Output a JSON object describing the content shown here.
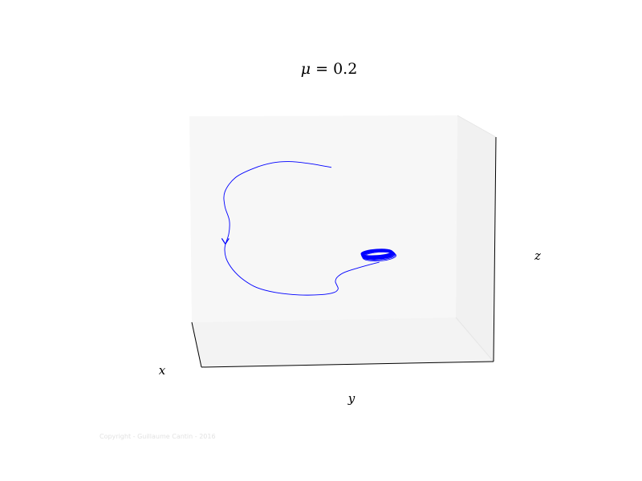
{
  "chart_data": {
    "type": "line",
    "projection": "3d",
    "title": {
      "var": "μ",
      "op": " = ",
      "value": "0.2"
    },
    "xlabel": "x",
    "ylabel": "y",
    "zlabel": "z",
    "grid": false,
    "ticks": false,
    "direction_marker": "arrowhead",
    "series": [
      {
        "color": "#0000ff",
        "points": [
          [
            0.53,
            0.75
          ],
          [
            0.44,
            0.77
          ],
          [
            0.37,
            0.778
          ],
          [
            0.31,
            0.772
          ],
          [
            0.24,
            0.746
          ],
          [
            0.17,
            0.7
          ],
          [
            0.13,
            0.63
          ],
          [
            0.13,
            0.56
          ],
          [
            0.147,
            0.49
          ],
          [
            0.145,
            0.425
          ],
          [
            0.13,
            0.36
          ],
          [
            0.135,
            0.305
          ],
          [
            0.16,
            0.25
          ],
          [
            0.2,
            0.2
          ],
          [
            0.25,
            0.162
          ],
          [
            0.32,
            0.138
          ],
          [
            0.41,
            0.126
          ],
          [
            0.49,
            0.127
          ],
          [
            0.54,
            0.138
          ],
          [
            0.555,
            0.155
          ],
          [
            0.55,
            0.175
          ],
          [
            0.545,
            0.192
          ],
          [
            0.552,
            0.213
          ],
          [
            0.58,
            0.237
          ],
          [
            0.63,
            0.258
          ],
          [
            0.68,
            0.276
          ],
          [
            0.71,
            0.286
          ]
        ]
      }
    ],
    "limit_cycle": {
      "color": "#0000ff",
      "center": [
        0.705,
        0.323
      ],
      "radius": [
        0.063,
        0.018
      ],
      "loops": 6
    },
    "arrow_at": [
      0.132,
      0.375
    ]
  },
  "footer": {
    "copyright": "Copyright - Guillaume Cantin - 2016"
  }
}
